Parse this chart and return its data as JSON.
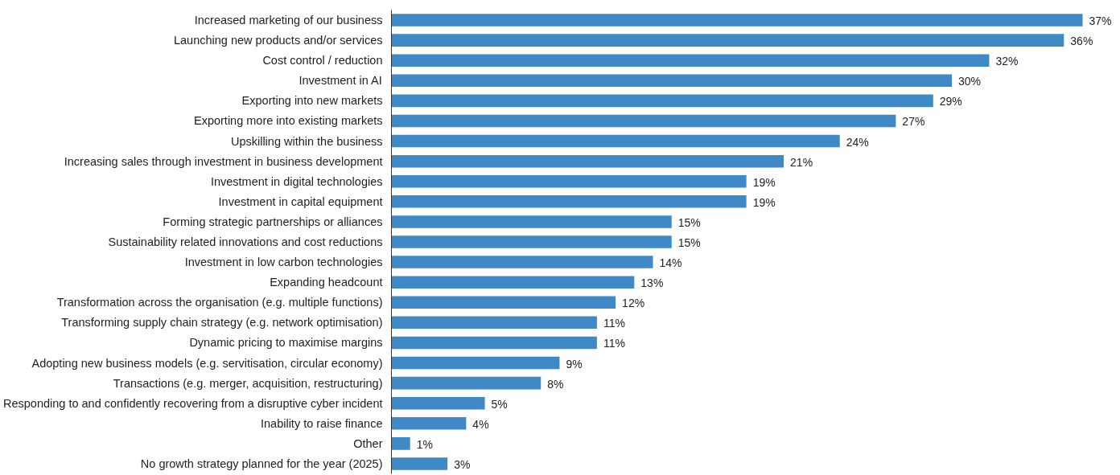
{
  "chart_data": {
    "type": "bar",
    "orientation": "horizontal",
    "categories": [
      "Increased marketing of our business",
      "Launching new products and/or services",
      "Cost control / reduction",
      "Investment in AI",
      "Exporting into new markets",
      "Exporting more into existing markets",
      "Upskilling within the business",
      "Increasing sales through investment in business development",
      "Investment in digital technologies",
      "Investment in capital equipment",
      "Forming strategic partnerships or alliances",
      "Sustainability related innovations and cost reductions",
      "Investment in low carbon technologies",
      "Expanding headcount",
      "Transformation across the organisation (e.g. multiple functions)",
      "Transforming supply chain strategy (e.g. network optimisation)",
      "Dynamic pricing to maximise margins",
      "Adopting new business models (e.g. servitisation, circular economy)",
      "Transactions (e.g. merger, acquisition, restructuring)",
      "Responding to and confidently recovering from a disruptive cyber incident",
      "Inability to raise finance",
      "Other",
      "No growth strategy planned for the year (2025)"
    ],
    "values": [
      37,
      36,
      32,
      30,
      29,
      27,
      24,
      21,
      19,
      19,
      15,
      15,
      14,
      13,
      12,
      11,
      11,
      9,
      8,
      5,
      4,
      1,
      3
    ],
    "value_labels": [
      "37%",
      "36%",
      "32%",
      "30%",
      "29%",
      "27%",
      "24%",
      "21%",
      "19%",
      "19%",
      "15%",
      "15%",
      "14%",
      "13%",
      "12%",
      "11%",
      "11%",
      "9%",
      "8%",
      "5%",
      "4%",
      "1%",
      "3%"
    ],
    "color": "#3f8ac6",
    "grid": false
  }
}
